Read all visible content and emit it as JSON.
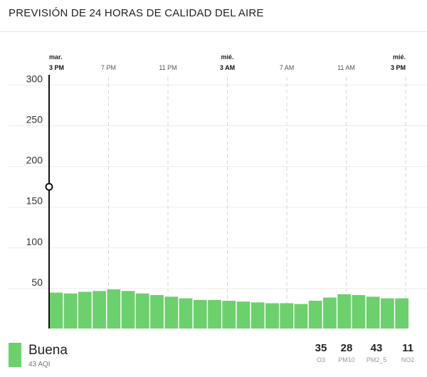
{
  "header": {
    "title": "PREVISIÓN DE 24 HORAS DE CALIDAD DEL AIRE"
  },
  "chart_data": {
    "type": "bar",
    "title": "PREVISIÓN DE 24 HORAS DE CALIDAD DEL AIRE",
    "xlabel": "",
    "ylabel": "",
    "ylim": [
      0,
      310
    ],
    "y_ticks": [
      50,
      100,
      150,
      200,
      250,
      300
    ],
    "grid": true,
    "x_ticks": [
      {
        "day": "mar.",
        "time": "3 PM",
        "bold": true
      },
      {
        "day": "",
        "time": "7 PM",
        "bold": false
      },
      {
        "day": "",
        "time": "11 PM",
        "bold": false
      },
      {
        "day": "mié.",
        "time": "3 AM",
        "bold": true
      },
      {
        "day": "",
        "time": "7 AM",
        "bold": false
      },
      {
        "day": "",
        "time": "11 AM",
        "bold": false
      },
      {
        "day": "mié.",
        "time": "3 PM",
        "bold": true
      }
    ],
    "current_marker_value": 175,
    "bar_color": "#6cd06c",
    "values": [
      45,
      44,
      46,
      47,
      49,
      47,
      44,
      42,
      40,
      38,
      36,
      36,
      35,
      34,
      33,
      32,
      32,
      31,
      35,
      39,
      43,
      42,
      40,
      38,
      38
    ]
  },
  "footer": {
    "category": "Buena",
    "aqi_label": "43 AQI",
    "category_color": "#6cd06c",
    "pollutants": [
      {
        "value": "35",
        "name": "O3"
      },
      {
        "value": "28",
        "name": "PM10"
      },
      {
        "value": "43",
        "name": "PM2_5"
      },
      {
        "value": "11",
        "name": "NO2"
      }
    ]
  }
}
